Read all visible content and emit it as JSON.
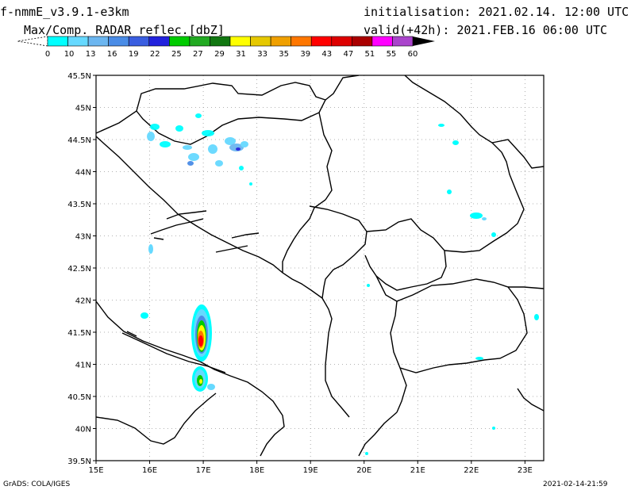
{
  "header": {
    "model": "f-nmmE_v3.9.1-e3km",
    "product": "Max/Comp. RADAR reflec.[dbZ]",
    "initialisation": "initialisation: 2021.02.14. 12:00 UTC",
    "valid": "valid(+42h): 2021.FEB.16 06:00 UTC"
  },
  "colorbar": {
    "labels": [
      "0",
      "10",
      "13",
      "16",
      "19",
      "22",
      "25",
      "27",
      "29",
      "31",
      "33",
      "35",
      "39",
      "43",
      "47",
      "51",
      "55",
      "60"
    ],
    "colors": [
      "#00ffff",
      "#66d9ff",
      "#6cb6f0",
      "#4a8ce6",
      "#3a5ee0",
      "#2222dd",
      "#00cc00",
      "#22aa22",
      "#117711",
      "#ffff00",
      "#e6c800",
      "#f0a000",
      "#ff7700",
      "#ff0000",
      "#dd0000",
      "#aa0000",
      "#ff00ff",
      "#aa44cc",
      "#000000"
    ]
  },
  "map": {
    "lon_range": [
      15,
      23.35
    ],
    "lat_range": [
      39.5,
      45.5
    ],
    "x_ticks": [
      {
        "v": 15,
        "label": "15E"
      },
      {
        "v": 16,
        "label": "16E"
      },
      {
        "v": 17,
        "label": "17E"
      },
      {
        "v": 18,
        "label": "18E"
      },
      {
        "v": 19,
        "label": "19E"
      },
      {
        "v": 20,
        "label": "20E"
      },
      {
        "v": 21,
        "label": "21E"
      },
      {
        "v": 22,
        "label": "22E"
      },
      {
        "v": 23,
        "label": "23E"
      }
    ],
    "y_ticks": [
      {
        "v": 39.5,
        "label": "39.5N"
      },
      {
        "v": 40,
        "label": "40N"
      },
      {
        "v": 40.5,
        "label": "40.5N"
      },
      {
        "v": 41,
        "label": "41N"
      },
      {
        "v": 41.5,
        "label": "41.5N"
      },
      {
        "v": 42,
        "label": "42N"
      },
      {
        "v": 42.5,
        "label": "42.5N"
      },
      {
        "v": 43,
        "label": "43N"
      },
      {
        "v": 43.5,
        "label": "43.5N"
      },
      {
        "v": 44,
        "label": "44N"
      },
      {
        "v": 44.5,
        "label": "44.5N"
      },
      {
        "v": 45,
        "label": "45N"
      },
      {
        "v": 45.5,
        "label": "45.5N"
      }
    ],
    "grid": true
  },
  "footer": {
    "credit": "GrADS: COLA/IGES",
    "timestamp": "2021-02-14-21:59"
  }
}
